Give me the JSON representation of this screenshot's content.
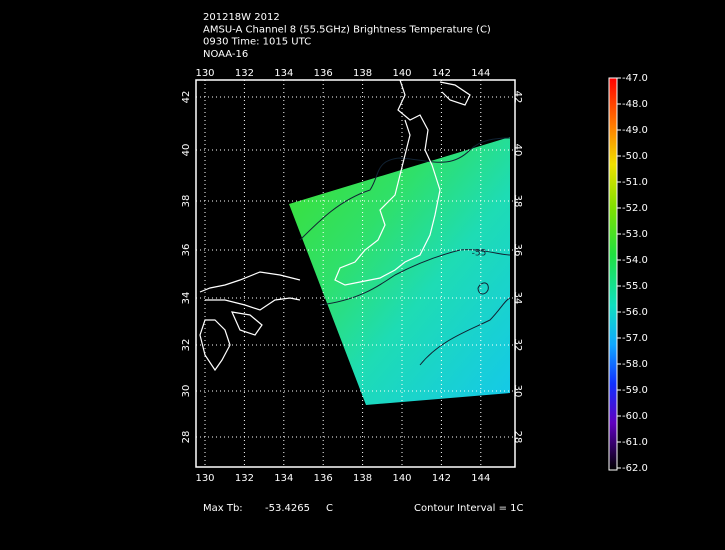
{
  "header": {
    "lines": [
      "201218W 2012",
      "AMSU-A Channel 8 (55.5GHz) Brightness Temperature (C)",
      "0930 Time: 1015 UTC",
      "NOAA-16"
    ]
  },
  "map": {
    "lon_ticks": [
      "130",
      "132",
      "134",
      "136",
      "138",
      "140",
      "142",
      "144"
    ],
    "lat_ticks": [
      "42",
      "40",
      "38",
      "36",
      "34",
      "32",
      "30",
      "28"
    ],
    "contour_label": "-55"
  },
  "colorbar": {
    "labels": [
      "-47.0",
      "-48.0",
      "-49.0",
      "-50.0",
      "-51.0",
      "-52.0",
      "-53.0",
      "-54.0",
      "-55.0",
      "-56.0",
      "-57.0",
      "-58.0",
      "-59.0",
      "-60.0",
      "-61.0",
      "-62.0"
    ]
  },
  "footer": {
    "max_label": "Max Tb:",
    "max_value": "-53.4265",
    "max_unit": "C",
    "contour_interval": "Contour Interval = 1C"
  }
}
